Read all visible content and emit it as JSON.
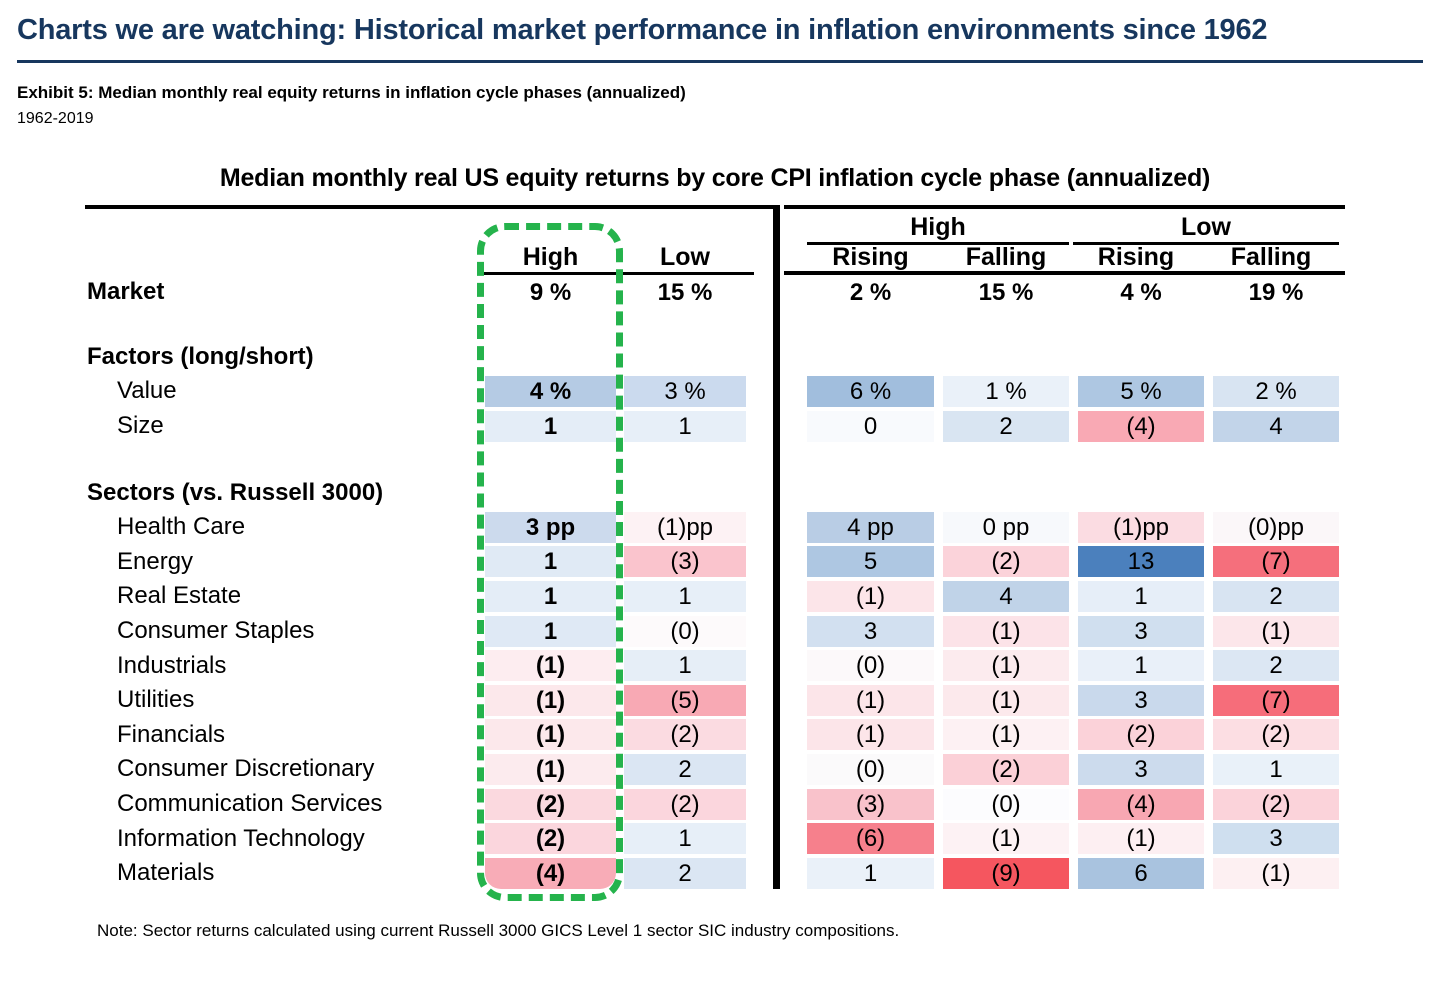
{
  "page": {
    "title": "Charts we are watching: Historical market performance in inflation environments since 1962",
    "title_color": "#17375e",
    "exhibit_title": "Exhibit 5: Median monthly real equity returns in inflation cycle phases (annualized)",
    "period": "1962-2019"
  },
  "chart_data": {
    "type": "heatmap",
    "title": "Median monthly real US equity returns by core CPI inflation cycle phase (annualized)",
    "units": {
      "market_and_factors": "% annualized",
      "sectors": "pp vs. Russell 3000"
    },
    "headers": {
      "left": [
        "High",
        "Low"
      ],
      "groups": [
        "High",
        "Low"
      ],
      "sub": [
        "Rising",
        "Falling",
        "Rising",
        "Falling"
      ]
    },
    "highlight_box": {
      "around": "High (left) column",
      "style": "dashed rounded rectangle",
      "color": "#25b34c"
    },
    "note": "Note: Sector returns calculated using current Russell 3000 GICS Level 1 sector SIC industry compositions.",
    "rows": [
      {
        "type": "data",
        "label": "Market",
        "bold_label": true,
        "cells": [
          {
            "t": "9 %",
            "v": 9,
            "b": 1
          },
          {
            "t": "15 %",
            "v": 15,
            "b": 1
          },
          {
            "t": "2 %",
            "v": 2,
            "b": 1
          },
          {
            "t": "15 %",
            "v": 15,
            "b": 1
          },
          {
            "t": "4 %",
            "v": 4,
            "b": 1
          },
          {
            "t": "19 %",
            "v": 19,
            "b": 1
          }
        ]
      },
      {
        "type": "spacer",
        "h": 30
      },
      {
        "type": "section",
        "label": "Factors (long/short)"
      },
      {
        "type": "data",
        "label": "Value",
        "indent": true,
        "cells": [
          {
            "t": "4 %",
            "v": 4,
            "bg": "#b5cbe4",
            "b": 1
          },
          {
            "t": "3 %",
            "v": 3,
            "bg": "#cbdaee"
          },
          {
            "t": "6 %",
            "v": 6,
            "bg": "#a1bedd"
          },
          {
            "t": "1 %",
            "v": 1,
            "bg": "#eaf1f9"
          },
          {
            "t": "5 %",
            "v": 5,
            "bg": "#aec7e2"
          },
          {
            "t": "2 %",
            "v": 2,
            "bg": "#d8e4f2"
          }
        ]
      },
      {
        "type": "data",
        "label": "Size",
        "indent": true,
        "cells": [
          {
            "t": "1",
            "v": 1,
            "bg": "#e4edf7",
            "b": 1
          },
          {
            "t": "1",
            "v": 1,
            "bg": "#e7eff8"
          },
          {
            "t": "0",
            "v": 0,
            "bg": "#f8fafd"
          },
          {
            "t": "2",
            "v": 2,
            "bg": "#d9e5f2"
          },
          {
            "t": "(4)",
            "v": -4,
            "bg": "#f9a9b4"
          },
          {
            "t": "4",
            "v": 4,
            "bg": "#c2d4e9"
          }
        ]
      },
      {
        "type": "spacer",
        "h": 32
      },
      {
        "type": "section",
        "label": "Sectors (vs. Russell 3000)"
      },
      {
        "type": "data",
        "label": "Health Care",
        "indent": true,
        "cells": [
          {
            "t": "3 pp",
            "v": 3,
            "bg": "#ccdaed",
            "b": 1
          },
          {
            "t": "(1)pp",
            "v": -1,
            "bg": "#fdf2f4"
          },
          {
            "t": "4 pp",
            "v": 4,
            "bg": "#b9cde5"
          },
          {
            "t": "0 pp",
            "v": 0,
            "bg": "#f7f9fc"
          },
          {
            "t": "(1)pp",
            "v": -1,
            "bg": "#fbdce2"
          },
          {
            "t": "(0)pp",
            "v": 0,
            "bg": "#fbf7f9"
          }
        ]
      },
      {
        "type": "data",
        "label": "Energy",
        "indent": true,
        "cells": [
          {
            "t": "1",
            "v": 1,
            "bg": "#e0eaf5",
            "b": 1
          },
          {
            "t": "(3)",
            "v": -3,
            "bg": "#fac4cd"
          },
          {
            "t": "5",
            "v": 5,
            "bg": "#aec7e2"
          },
          {
            "t": "(2)",
            "v": -2,
            "bg": "#fbd3da"
          },
          {
            "t": "13",
            "v": 13,
            "bg": "#4b80bd"
          },
          {
            "t": "(7)",
            "v": -7,
            "bg": "#f56f7c"
          }
        ]
      },
      {
        "type": "data",
        "label": "Real Estate",
        "indent": true,
        "cells": [
          {
            "t": "1",
            "v": 1,
            "bg": "#e4edf7",
            "b": 1
          },
          {
            "t": "1",
            "v": 1,
            "bg": "#e7eff8"
          },
          {
            "t": "(1)",
            "v": -1,
            "bg": "#fce5e9"
          },
          {
            "t": "4",
            "v": 4,
            "bg": "#c0d3e8"
          },
          {
            "t": "1",
            "v": 1,
            "bg": "#e6eef8"
          },
          {
            "t": "2",
            "v": 2,
            "bg": "#d8e4f2"
          }
        ]
      },
      {
        "type": "data",
        "label": "Consumer Staples",
        "indent": true,
        "cells": [
          {
            "t": "1",
            "v": 1,
            "bg": "#dfe9f5",
            "b": 1
          },
          {
            "t": "(0)",
            "v": 0,
            "bg": "#fdfafb"
          },
          {
            "t": "3",
            "v": 3,
            "bg": "#d2e0f0"
          },
          {
            "t": "(1)",
            "v": -1,
            "bg": "#fce3e8"
          },
          {
            "t": "3",
            "v": 3,
            "bg": "#d0dfef"
          },
          {
            "t": "(1)",
            "v": -1,
            "bg": "#fce6ea"
          }
        ]
      },
      {
        "type": "data",
        "label": "Industrials",
        "indent": true,
        "cells": [
          {
            "t": "(1)",
            "v": -1,
            "bg": "#fdedf0",
            "b": 1
          },
          {
            "t": "1",
            "v": 1,
            "bg": "#e6eef7"
          },
          {
            "t": "(0)",
            "v": 0,
            "bg": "#fcf9fa"
          },
          {
            "t": "(1)",
            "v": -1,
            "bg": "#fcebee"
          },
          {
            "t": "1",
            "v": 1,
            "bg": "#e9f0f9"
          },
          {
            "t": "2",
            "v": 2,
            "bg": "#dce7f3"
          }
        ]
      },
      {
        "type": "data",
        "label": "Utilities",
        "indent": true,
        "cells": [
          {
            "t": "(1)",
            "v": -1,
            "bg": "#fce8eb",
            "b": 1
          },
          {
            "t": "(5)",
            "v": -5,
            "bg": "#f8a9b4"
          },
          {
            "t": "(1)",
            "v": -1,
            "bg": "#fce5e9"
          },
          {
            "t": "(1)",
            "v": -1,
            "bg": "#fce9ec"
          },
          {
            "t": "3",
            "v": 3,
            "bg": "#c9d9ec"
          },
          {
            "t": "(7)",
            "v": -7,
            "bg": "#f66d7a"
          }
        ]
      },
      {
        "type": "data",
        "label": "Financials",
        "indent": true,
        "cells": [
          {
            "t": "(1)",
            "v": -1,
            "bg": "#fce8eb",
            "b": 1
          },
          {
            "t": "(2)",
            "v": -2,
            "bg": "#fbdbe1"
          },
          {
            "t": "(1)",
            "v": -1,
            "bg": "#fce5e9"
          },
          {
            "t": "(1)",
            "v": -1,
            "bg": "#fdf1f3"
          },
          {
            "t": "(2)",
            "v": -2,
            "bg": "#fbd2d9"
          },
          {
            "t": "(2)",
            "v": -2,
            "bg": "#fcdee3"
          }
        ]
      },
      {
        "type": "data",
        "label": "Consumer Discretionary",
        "indent": true,
        "cells": [
          {
            "t": "(1)",
            "v": -1,
            "bg": "#fcebee",
            "b": 1
          },
          {
            "t": "2",
            "v": 2,
            "bg": "#dbe6f3"
          },
          {
            "t": "(0)",
            "v": 0,
            "bg": "#fbfafb"
          },
          {
            "t": "(2)",
            "v": -2,
            "bg": "#fbd0d7"
          },
          {
            "t": "3",
            "v": 3,
            "bg": "#ccdbed"
          },
          {
            "t": "1",
            "v": 1,
            "bg": "#e9f1f9"
          }
        ]
      },
      {
        "type": "data",
        "label": "Communication Services",
        "indent": true,
        "cells": [
          {
            "t": "(2)",
            "v": -2,
            "bg": "#fbd9df",
            "b": 1
          },
          {
            "t": "(2)",
            "v": -2,
            "bg": "#fbd6dd"
          },
          {
            "t": "(3)",
            "v": -3,
            "bg": "#f9c2cb"
          },
          {
            "t": "(0)",
            "v": 0,
            "bg": "#fcfcfe"
          },
          {
            "t": "(4)",
            "v": -4,
            "bg": "#f8a7b2"
          },
          {
            "t": "(2)",
            "v": -2,
            "bg": "#fbd3da"
          }
        ]
      },
      {
        "type": "data",
        "label": "Information Technology",
        "indent": true,
        "cells": [
          {
            "t": "(2)",
            "v": -2,
            "bg": "#fbd6dd",
            "b": 1
          },
          {
            "t": "1",
            "v": 1,
            "bg": "#e7eff8"
          },
          {
            "t": "(6)",
            "v": -6,
            "bg": "#f6808c"
          },
          {
            "t": "(1)",
            "v": -1,
            "bg": "#fdf2f4"
          },
          {
            "t": "(1)",
            "v": -1,
            "bg": "#fdeff2"
          },
          {
            "t": "3",
            "v": 3,
            "bg": "#cfdfef"
          }
        ]
      },
      {
        "type": "data",
        "label": "Materials",
        "indent": true,
        "cells": [
          {
            "t": "(4)",
            "v": -4,
            "bg": "#f8acb7",
            "b": 1,
            "r": "0 0 16px 16px"
          },
          {
            "t": "2",
            "v": 2,
            "bg": "#dbe6f3"
          },
          {
            "t": "1",
            "v": 1,
            "bg": "#eaf1f9"
          },
          {
            "t": "(9)",
            "v": -9,
            "bg": "#f5565f"
          },
          {
            "t": "6",
            "v": 6,
            "bg": "#a9c3df"
          },
          {
            "t": "(1)",
            "v": -1,
            "bg": "#fdf0f2"
          }
        ]
      }
    ]
  }
}
